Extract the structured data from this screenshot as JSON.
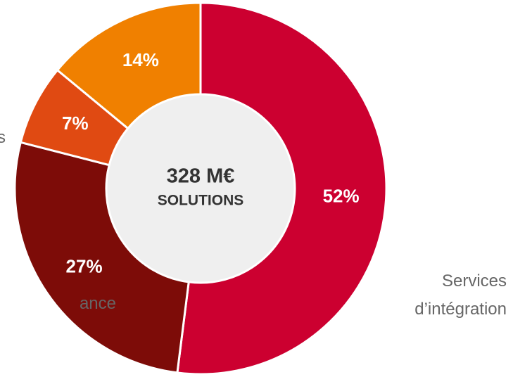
{
  "chart_data": {
    "type": "donut",
    "categories": [
      "Services d’intégration",
      "ance",
      "s",
      null
    ],
    "values": [
      52,
      27,
      7,
      14
    ],
    "value_labels": [
      "52%",
      "27%",
      "7%",
      "14%"
    ],
    "colors": [
      "#cc0030",
      "#7d0c08",
      "#e04a12",
      "#f08000"
    ],
    "center_title": "328 M€",
    "center_subtitle": "SOLUTIONS"
  }
}
